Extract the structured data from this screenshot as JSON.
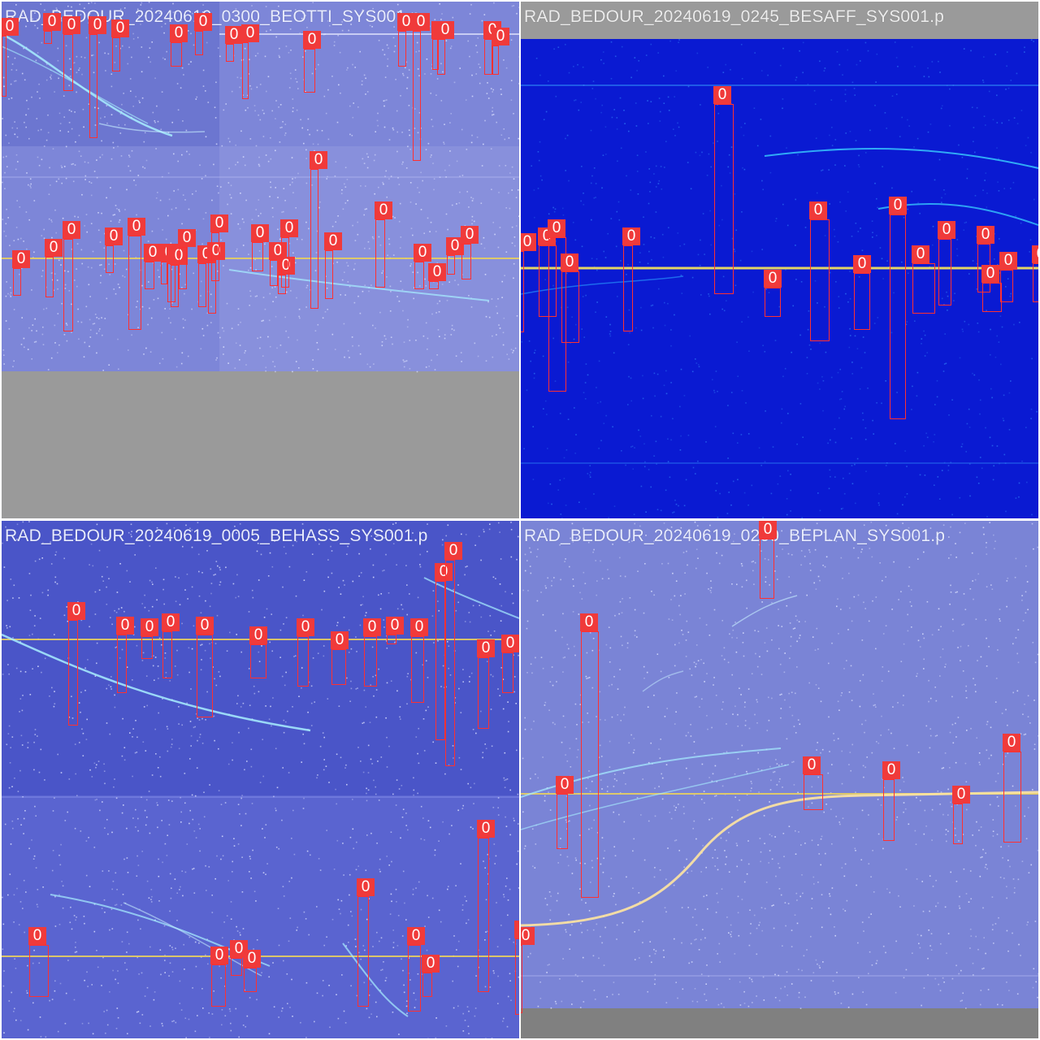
{
  "colors": {
    "box": "#ff3030",
    "label_bg": "#f03a3a",
    "pale_field": "#7d86d8",
    "dark_field": "#0a1ad2",
    "gray_pad": "#9a9a9a",
    "horizon": "#e8d060",
    "meteor_trail": "#a8f0ff"
  },
  "panels": [
    {
      "id": "tl",
      "filename": "RAD_BEDOUR_20240619_0300_BEOTTI_SYS001.p",
      "style": "pale",
      "detections": [
        {
          "label": "0"
        },
        {
          "label": "0"
        },
        {
          "label": "0"
        },
        {
          "label": "0"
        },
        {
          "label": "0"
        },
        {
          "label": "0"
        },
        {
          "label": "0"
        },
        {
          "label": "0"
        },
        {
          "label": "0"
        },
        {
          "label": "0"
        },
        {
          "label": "0"
        },
        {
          "label": "0"
        },
        {
          "label": "0"
        },
        {
          "label": "0"
        },
        {
          "label": "0"
        },
        {
          "label": "0"
        },
        {
          "label": "0"
        },
        {
          "label": "0"
        },
        {
          "label": "0"
        },
        {
          "label": "0"
        },
        {
          "label": "0"
        },
        {
          "label": "0"
        },
        {
          "label": "0"
        },
        {
          "label": "0"
        },
        {
          "label": "0"
        },
        {
          "label": "0"
        },
        {
          "label": "0"
        },
        {
          "label": "0"
        },
        {
          "label": "0"
        },
        {
          "label": "0"
        },
        {
          "label": "0"
        },
        {
          "label": "0"
        },
        {
          "label": "0"
        },
        {
          "label": "0"
        },
        {
          "label": "0"
        },
        {
          "label": "0"
        }
      ]
    },
    {
      "id": "tr",
      "filename": "RAD_BEDOUR_20240619_0245_BESAFF_SYS001.p",
      "style": "dark",
      "detections": [
        {
          "label": "0"
        },
        {
          "label": "0"
        },
        {
          "label": "0"
        },
        {
          "label": "0"
        },
        {
          "label": "0"
        },
        {
          "label": "0"
        },
        {
          "label": "0"
        },
        {
          "label": "0"
        },
        {
          "label": "0"
        },
        {
          "label": "0"
        },
        {
          "label": "0"
        },
        {
          "label": "0"
        },
        {
          "label": "0"
        },
        {
          "label": "0"
        },
        {
          "label": "0"
        },
        {
          "label": "0"
        },
        {
          "label": "0"
        }
      ]
    },
    {
      "id": "bl",
      "filename": "RAD_BEDOUR_20240619_0005_BEHASS_SYS001.p",
      "style": "pale",
      "detections": [
        {
          "label": "0"
        },
        {
          "label": "0"
        },
        {
          "label": "0"
        },
        {
          "label": "0"
        },
        {
          "label": "0"
        },
        {
          "label": "0"
        },
        {
          "label": "0"
        },
        {
          "label": "0"
        },
        {
          "label": "0"
        },
        {
          "label": "0"
        },
        {
          "label": "0"
        },
        {
          "label": "0"
        },
        {
          "label": "0"
        },
        {
          "label": "0"
        },
        {
          "label": "0"
        },
        {
          "label": "0"
        },
        {
          "label": "0"
        },
        {
          "label": "0"
        },
        {
          "label": "0"
        },
        {
          "label": "0"
        },
        {
          "label": "0"
        },
        {
          "label": "0"
        },
        {
          "label": "0"
        },
        {
          "label": "0"
        },
        {
          "label": "0"
        },
        {
          "label": "0"
        }
      ]
    },
    {
      "id": "br",
      "filename": "RAD_BEDOUR_20240619_0200_BEPLAN_SYS001.p",
      "style": "pale",
      "detections": [
        {
          "label": "0"
        },
        {
          "label": "0"
        },
        {
          "label": "0"
        },
        {
          "label": "0"
        },
        {
          "label": "0"
        },
        {
          "label": "0"
        },
        {
          "label": "0"
        },
        {
          "label": "0"
        }
      ]
    }
  ]
}
